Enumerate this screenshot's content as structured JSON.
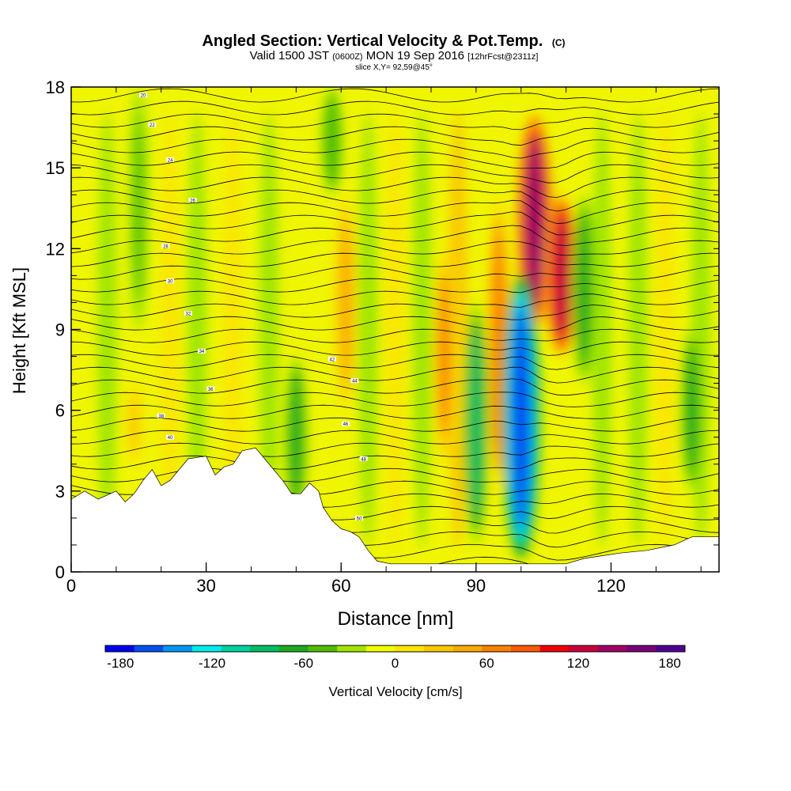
{
  "title": {
    "main": "Angled Section: Vertical Velocity & Pot.Temp.",
    "main_suffix": "(C)",
    "valid_prefix": "Valid 1500 JST",
    "valid_zulu": "(0600Z)",
    "valid_date": "MON 19 Sep 2016",
    "forecast": "[12hrFcst@2311z]",
    "slice": "slice X,Y= 92,59@45°"
  },
  "chart_data": {
    "type": "heatmap",
    "title": "Angled Section: Vertical Velocity & Pot.Temp. (C)",
    "xlabel": "Distance [nm]",
    "ylabel": "Height [Kft MSL]",
    "xlim": [
      0,
      144
    ],
    "ylim": [
      0,
      18
    ],
    "x_ticks": [
      0,
      30,
      60,
      90,
      120
    ],
    "y_ticks": [
      0,
      3,
      6,
      9,
      12,
      15,
      18
    ],
    "colorbar": {
      "label": "Vertical Velocity [cm/s]",
      "ticks": [
        -180,
        -120,
        -60,
        0,
        60,
        120,
        180
      ],
      "range": [
        -190,
        190
      ],
      "step": 20,
      "colors": [
        "#0000f0",
        "#0050f0",
        "#0096f5",
        "#00ebeb",
        "#00d2a0",
        "#00be64",
        "#1eaa1e",
        "#50be00",
        "#a0e600",
        "#f0ff00",
        "#fae600",
        "#fac800",
        "#faaa00",
        "#fa8200",
        "#fa5a00",
        "#f00000",
        "#c8003c",
        "#a00064",
        "#780078",
        "#500090"
      ]
    },
    "terrain": [
      [
        0,
        2.7
      ],
      [
        3,
        3.0
      ],
      [
        6,
        2.7
      ],
      [
        10,
        3.0
      ],
      [
        12,
        2.6
      ],
      [
        14,
        2.9
      ],
      [
        16,
        3.4
      ],
      [
        18,
        3.8
      ],
      [
        20,
        3.2
      ],
      [
        22,
        3.4
      ],
      [
        24,
        3.8
      ],
      [
        26,
        4.2
      ],
      [
        30,
        4.3
      ],
      [
        32,
        3.6
      ],
      [
        34,
        3.9
      ],
      [
        36,
        4.0
      ],
      [
        38,
        4.5
      ],
      [
        41,
        4.6
      ],
      [
        43,
        4.2
      ],
      [
        45,
        3.8
      ],
      [
        47,
        3.4
      ],
      [
        49,
        2.9
      ],
      [
        51,
        2.9
      ],
      [
        53,
        3.3
      ],
      [
        55,
        3.0
      ],
      [
        56,
        2.4
      ],
      [
        58,
        1.9
      ],
      [
        60,
        1.6
      ],
      [
        62,
        1.5
      ],
      [
        64,
        1.3
      ],
      [
        66,
        0.8
      ],
      [
        68,
        0.4
      ],
      [
        71,
        0.3
      ],
      [
        110,
        0.3
      ],
      [
        114,
        0.5
      ],
      [
        118,
        0.6
      ],
      [
        122,
        0.7
      ],
      [
        128,
        0.8
      ],
      [
        134,
        1.0
      ],
      [
        138,
        1.3
      ],
      [
        144,
        1.3
      ]
    ],
    "updrafts": [
      {
        "x": 14,
        "y": [
          4,
          7
        ],
        "w": 30
      },
      {
        "x": 61,
        "y": [
          6,
          14
        ],
        "w": 60
      },
      {
        "x": 83,
        "y": [
          4,
          12
        ],
        "w": 70
      },
      {
        "x": 95,
        "y": [
          3,
          14
        ],
        "w": 80
      },
      {
        "x": 103,
        "y": [
          9,
          17
        ],
        "w": 160
      },
      {
        "x": 109,
        "y": [
          8,
          14
        ],
        "w": 140
      }
    ],
    "downdrafts": [
      {
        "x": 15,
        "y": [
          9,
          18
        ],
        "w": -40
      },
      {
        "x": 50,
        "y": [
          2,
          8
        ],
        "w": -60
      },
      {
        "x": 58,
        "y": [
          14,
          18
        ],
        "w": -50
      },
      {
        "x": 90,
        "y": [
          1,
          10
        ],
        "w": -80
      },
      {
        "x": 100,
        "y": [
          0.5,
          11
        ],
        "w": -170
      },
      {
        "x": 114,
        "y": [
          7,
          14
        ],
        "w": -70
      },
      {
        "x": 138,
        "y": [
          3,
          9
        ],
        "w": -60
      }
    ],
    "isentrope_labels": [
      "20",
      "22",
      "24",
      "26",
      "28",
      "30",
      "32",
      "34",
      "36",
      "38",
      "40",
      "42",
      "44",
      "46",
      "48",
      "50"
    ]
  }
}
